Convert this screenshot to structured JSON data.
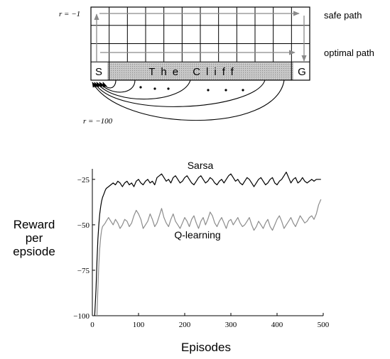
{
  "gridworld": {
    "cols": 12,
    "rows": 4,
    "start_label": "S",
    "goal_label": "G",
    "cliff_label": "The Cliff",
    "reward_step": "r = −1",
    "reward_cliff": "r = −100",
    "safe_path_label": "safe path",
    "optimal_path_label": "optimal path",
    "colors": {
      "grid": "#000000",
      "cliff_fill": "#b9b9b9",
      "path_arrow": "#8a8a8a"
    }
  },
  "chart_data": {
    "type": "line",
    "title": "",
    "xlabel": "Episodes",
    "ylabel": "Reward per epsiode",
    "ylabel_lines": [
      "Reward",
      "per",
      "epsiode"
    ],
    "xlim": [
      0,
      500
    ],
    "ylim": [
      -100,
      -20
    ],
    "xticks": [
      0,
      100,
      200,
      300,
      400,
      500
    ],
    "yticks": [
      -100,
      -75,
      -50,
      -25
    ],
    "grid": false,
    "series": [
      {
        "name": "Sarsa",
        "color": "#000000",
        "x": [
          5,
          8,
          10,
          12,
          14,
          16,
          18,
          20,
          22,
          25,
          28,
          30,
          35,
          40,
          45,
          50,
          55,
          60,
          65,
          70,
          75,
          80,
          85,
          90,
          95,
          100,
          105,
          110,
          115,
          120,
          125,
          130,
          135,
          140,
          145,
          150,
          155,
          160,
          165,
          170,
          175,
          180,
          185,
          190,
          195,
          200,
          205,
          210,
          215,
          220,
          225,
          230,
          235,
          240,
          245,
          250,
          255,
          260,
          265,
          270,
          275,
          280,
          285,
          290,
          295,
          300,
          305,
          310,
          315,
          320,
          325,
          330,
          335,
          340,
          345,
          350,
          355,
          360,
          365,
          370,
          375,
          380,
          385,
          390,
          395,
          400,
          405,
          410,
          415,
          420,
          425,
          430,
          435,
          440,
          445,
          450,
          455,
          460,
          465,
          470,
          475,
          480,
          485,
          490,
          495
        ],
        "values": [
          -100,
          -85,
          -70,
          -58,
          -50,
          -44,
          -40,
          -37,
          -35,
          -33,
          -31,
          -30,
          -29,
          -28,
          -27,
          -28,
          -26,
          -27,
          -29,
          -27,
          -26,
          -28,
          -27,
          -29,
          -26,
          -25,
          -27,
          -28,
          -26,
          -25,
          -27,
          -26,
          -28,
          -24,
          -23,
          -22,
          -24,
          -26,
          -25,
          -27,
          -24,
          -23,
          -25,
          -27,
          -26,
          -24,
          -23,
          -25,
          -27,
          -28,
          -26,
          -24,
          -23,
          -25,
          -27,
          -26,
          -24,
          -25,
          -27,
          -28,
          -26,
          -25,
          -27,
          -25,
          -23,
          -22,
          -24,
          -26,
          -25,
          -27,
          -28,
          -26,
          -24,
          -25,
          -27,
          -29,
          -27,
          -25,
          -24,
          -26,
          -28,
          -27,
          -25,
          -24,
          -27,
          -28,
          -26,
          -25,
          -23,
          -21,
          -24,
          -27,
          -25,
          -24,
          -27,
          -26,
          -24,
          -26,
          -27,
          -26,
          -25,
          -26,
          -25,
          -25,
          -25
        ]
      },
      {
        "name": "Q-learning",
        "color": "#8c8c8c",
        "x": [
          10,
          12,
          14,
          16,
          18,
          20,
          22,
          25,
          28,
          30,
          35,
          40,
          45,
          50,
          55,
          60,
          65,
          70,
          75,
          80,
          85,
          90,
          95,
          100,
          105,
          110,
          115,
          120,
          125,
          130,
          135,
          140,
          145,
          150,
          155,
          160,
          165,
          170,
          175,
          180,
          185,
          190,
          195,
          200,
          205,
          210,
          215,
          220,
          225,
          230,
          235,
          240,
          245,
          250,
          255,
          260,
          265,
          270,
          275,
          280,
          285,
          290,
          295,
          300,
          305,
          310,
          315,
          320,
          325,
          330,
          335,
          340,
          345,
          350,
          355,
          360,
          365,
          370,
          375,
          380,
          385,
          390,
          395,
          400,
          405,
          410,
          415,
          420,
          425,
          430,
          435,
          440,
          445,
          450,
          455,
          460,
          465,
          470,
          475,
          480,
          485,
          490,
          495
        ],
        "values": [
          -100,
          -85,
          -72,
          -63,
          -57,
          -53,
          -51,
          -50,
          -49,
          -48,
          -46,
          -48,
          -50,
          -47,
          -49,
          -52,
          -50,
          -47,
          -48,
          -51,
          -49,
          -45,
          -42,
          -44,
          -47,
          -52,
          -50,
          -48,
          -44,
          -47,
          -51,
          -49,
          -45,
          -41,
          -46,
          -49,
          -51,
          -47,
          -44,
          -48,
          -50,
          -52,
          -49,
          -46,
          -48,
          -51,
          -47,
          -45,
          -49,
          -52,
          -48,
          -46,
          -50,
          -47,
          -43,
          -45,
          -49,
          -51,
          -48,
          -46,
          -49,
          -52,
          -48,
          -47,
          -50,
          -48,
          -46,
          -49,
          -51,
          -50,
          -48,
          -46,
          -50,
          -53,
          -51,
          -48,
          -50,
          -52,
          -49,
          -47,
          -51,
          -53,
          -50,
          -47,
          -45,
          -48,
          -52,
          -50,
          -48,
          -46,
          -49,
          -51,
          -48,
          -45,
          -47,
          -49,
          -48,
          -46,
          -45,
          -47,
          -44,
          -39,
          -36
        ]
      }
    ]
  }
}
